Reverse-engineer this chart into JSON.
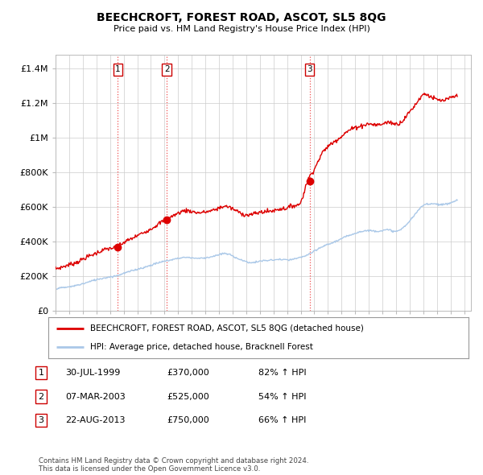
{
  "title": "BEECHCROFT, FOREST ROAD, ASCOT, SL5 8QG",
  "subtitle": "Price paid vs. HM Land Registry's House Price Index (HPI)",
  "ylabel_ticks": [
    "£0",
    "£200K",
    "£400K",
    "£600K",
    "£800K",
    "£1M",
    "£1.2M",
    "£1.4M"
  ],
  "ytick_values": [
    0,
    200000,
    400000,
    600000,
    800000,
    1000000,
    1200000,
    1400000
  ],
  "ylim": [
    0,
    1480000
  ],
  "xlim_start": 1995.0,
  "xlim_end": 2025.5,
  "sale_dates": [
    1999.58,
    2003.18,
    2013.65
  ],
  "sale_prices": [
    370000,
    525000,
    750000
  ],
  "sale_labels": [
    "1",
    "2",
    "3"
  ],
  "red_line_color": "#dd0000",
  "blue_line_color": "#aac8e8",
  "grid_color": "#cccccc",
  "bg_color": "#ffffff",
  "legend_label_red": "BEECHCROFT, FOREST ROAD, ASCOT, SL5 8QG (detached house)",
  "legend_label_blue": "HPI: Average price, detached house, Bracknell Forest",
  "table_data": [
    [
      "1",
      "30-JUL-1999",
      "£370,000",
      "82% ↑ HPI"
    ],
    [
      "2",
      "07-MAR-2003",
      "£525,000",
      "54% ↑ HPI"
    ],
    [
      "3",
      "22-AUG-2013",
      "£750,000",
      "66% ↑ HPI"
    ]
  ],
  "footnote": "Contains HM Land Registry data © Crown copyright and database right 2024.\nThis data is licensed under the Open Government Licence v3.0.",
  "vline_color": "#ee3333",
  "marker_label_box_color": "#cc0000",
  "prop_curve_x": [
    1995.0,
    1995.5,
    1996.0,
    1996.5,
    1997.0,
    1997.5,
    1998.0,
    1998.5,
    1999.0,
    1999.5,
    2000.0,
    2000.5,
    2001.0,
    2001.5,
    2002.0,
    2002.5,
    2003.0,
    2003.5,
    2004.0,
    2004.5,
    2005.0,
    2005.5,
    2006.0,
    2006.5,
    2007.0,
    2007.5,
    2008.0,
    2008.5,
    2009.0,
    2009.5,
    2010.0,
    2010.5,
    2011.0,
    2011.5,
    2012.0,
    2012.5,
    2013.0,
    2013.5,
    2014.0,
    2014.5,
    2015.0,
    2015.5,
    2016.0,
    2016.5,
    2017.0,
    2017.5,
    2018.0,
    2018.5,
    2019.0,
    2019.5,
    2020.0,
    2020.5,
    2021.0,
    2021.5,
    2022.0,
    2022.5,
    2023.0,
    2023.5,
    2024.0,
    2024.5
  ],
  "prop_curve_y": [
    245000,
    255000,
    268000,
    280000,
    300000,
    318000,
    335000,
    352000,
    362000,
    370000,
    395000,
    415000,
    435000,
    455000,
    475000,
    500000,
    525000,
    545000,
    565000,
    580000,
    575000,
    568000,
    572000,
    580000,
    595000,
    605000,
    590000,
    570000,
    555000,
    560000,
    570000,
    575000,
    580000,
    590000,
    595000,
    610000,
    630000,
    750000,
    820000,
    900000,
    950000,
    980000,
    1010000,
    1040000,
    1060000,
    1070000,
    1080000,
    1075000,
    1080000,
    1090000,
    1080000,
    1100000,
    1150000,
    1200000,
    1250000,
    1240000,
    1220000,
    1215000,
    1230000,
    1240000
  ],
  "hpi_curve_x": [
    1995.0,
    1995.5,
    1996.0,
    1996.5,
    1997.0,
    1997.5,
    1998.0,
    1998.5,
    1999.0,
    1999.5,
    2000.0,
    2000.5,
    2001.0,
    2001.5,
    2002.0,
    2002.5,
    2003.0,
    2003.5,
    2004.0,
    2004.5,
    2005.0,
    2005.5,
    2006.0,
    2006.5,
    2007.0,
    2007.5,
    2008.0,
    2008.5,
    2009.0,
    2009.5,
    2010.0,
    2010.5,
    2011.0,
    2011.5,
    2012.0,
    2012.5,
    2013.0,
    2013.5,
    2014.0,
    2014.5,
    2015.0,
    2015.5,
    2016.0,
    2016.5,
    2017.0,
    2017.5,
    2018.0,
    2018.5,
    2019.0,
    2019.5,
    2020.0,
    2020.5,
    2021.0,
    2021.5,
    2022.0,
    2022.5,
    2023.0,
    2023.5,
    2024.0,
    2024.5
  ],
  "hpi_curve_y": [
    130000,
    135000,
    140000,
    148000,
    158000,
    170000,
    182000,
    190000,
    198000,
    205000,
    218000,
    230000,
    242000,
    252000,
    265000,
    278000,
    288000,
    296000,
    305000,
    310000,
    308000,
    305000,
    308000,
    315000,
    325000,
    332000,
    318000,
    300000,
    285000,
    280000,
    288000,
    292000,
    295000,
    298000,
    295000,
    300000,
    310000,
    325000,
    345000,
    368000,
    385000,
    400000,
    418000,
    435000,
    450000,
    460000,
    465000,
    462000,
    465000,
    468000,
    460000,
    480000,
    520000,
    568000,
    610000,
    620000,
    618000,
    615000,
    625000,
    640000
  ]
}
